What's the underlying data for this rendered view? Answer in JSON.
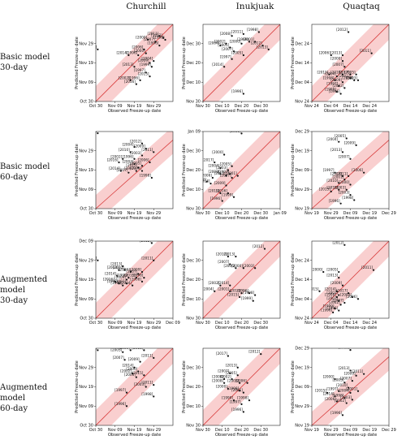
{
  "column_titles": [
    "Churchill",
    "Inukjuak",
    "Quaqtaq"
  ],
  "row_labels": [
    [
      "Basic model",
      "30-day"
    ],
    [
      "Basic model",
      "60-day"
    ],
    [
      "Augmented model",
      "30-day"
    ],
    [
      "Augmented model",
      "60-day"
    ]
  ],
  "axis_labels": {
    "x": "Observed Freeze-up date",
    "y": "Predicted Freeze-up date"
  },
  "colors": {
    "band": "#f9cfcf",
    "line": "#d94040",
    "point": "#111111",
    "frame": "#222222"
  },
  "chart_data": [
    {
      "type": "scatter",
      "panel": "Churchill Basic 30-day",
      "ticks": [
        "Oct 30",
        "Nov 09",
        "Nov 19",
        "Nov 29"
      ],
      "xlim": [
        0,
        40
      ],
      "ylim": [
        0,
        40
      ],
      "points": [
        [
          1,
          27,
          "[2017]"
        ],
        [
          17,
          24,
          "[2014]"
        ],
        [
          25,
          27,
          "[2006]"
        ],
        [
          26,
          25,
          "[2000]"
        ],
        [
          27,
          32,
          "[2000]"
        ],
        [
          31,
          31,
          "[2007]"
        ],
        [
          33,
          34,
          "[2011]"
        ],
        [
          35,
          33,
          "[2012]"
        ],
        [
          36,
          32,
          "[1998]"
        ],
        [
          22,
          24,
          "[1996]"
        ],
        [
          33,
          29,
          "[1996]"
        ],
        [
          20,
          18,
          "[2013]"
        ],
        [
          29,
          18,
          "[1999]"
        ],
        [
          30,
          21,
          "[2004]"
        ],
        [
          28,
          20,
          "[2009]"
        ],
        [
          26,
          15,
          "[1997]"
        ],
        [
          28,
          13,
          "[2015]"
        ],
        [
          23,
          11,
          "[1996]"
        ],
        [
          18,
          11,
          "[2002]"
        ],
        [
          21,
          9,
          "[2016]"
        ]
      ]
    },
    {
      "type": "scatter",
      "panel": "Inukjuak Basic 30-day",
      "ticks": [
        "Nov 30",
        "Dec 10",
        "Dec 20",
        "Dec 30"
      ],
      "xlim": [
        0,
        40
      ],
      "ylim": [
        0,
        40
      ],
      "points": [
        [
          9,
          29,
          "[2004]"
        ],
        [
          12,
          30,
          "[2002]"
        ],
        [
          15,
          34,
          "[2008]"
        ],
        [
          21,
          35,
          "[2011]"
        ],
        [
          29,
          36,
          "[1998]"
        ],
        [
          14,
          28,
          "[2001]"
        ],
        [
          16,
          26,
          "[2007]"
        ],
        [
          20,
          30,
          "[2000]"
        ],
        [
          24,
          31,
          "[1999]"
        ],
        [
          27,
          31,
          "[2001]"
        ],
        [
          31,
          29,
          "[2012]"
        ],
        [
          34,
          27,
          "[2013]"
        ],
        [
          21,
          24,
          "[2005]"
        ],
        [
          15,
          22,
          "[1997]"
        ],
        [
          11,
          18,
          "[2014]"
        ],
        [
          21,
          4,
          "[1996]"
        ]
      ]
    },
    {
      "type": "scatter",
      "panel": "Quaqtaq Basic 30-day",
      "ticks": [
        "Nov 24",
        "Dec 04",
        "Dec 14",
        "Dec 24"
      ],
      "xlim": [
        0,
        40
      ],
      "ylim": [
        0,
        40
      ],
      "points": [
        [
          19,
          36,
          "[2012]"
        ],
        [
          10,
          24,
          "[2006]"
        ],
        [
          16,
          24,
          "[2013]"
        ],
        [
          31,
          25,
          "[2011]"
        ],
        [
          16,
          21,
          "[2000]"
        ],
        [
          17,
          18,
          "[2007]"
        ],
        [
          9,
          14,
          "[2015]"
        ],
        [
          13,
          13,
          "[2004]"
        ],
        [
          16,
          14,
          "[2014]"
        ],
        [
          20,
          14,
          "[2017]"
        ],
        [
          23,
          14,
          "[2005]"
        ],
        [
          12,
          11,
          "[1998]"
        ],
        [
          20,
          12,
          "[2001]"
        ],
        [
          22,
          11,
          "[2008]"
        ],
        [
          24,
          11,
          "[2003]"
        ],
        [
          16,
          10,
          "[2009]"
        ],
        [
          14,
          8,
          "[1997]"
        ],
        [
          17,
          7,
          "[2002]"
        ],
        [
          13,
          5,
          "[1999]"
        ],
        [
          15,
          4,
          "[1996]"
        ]
      ]
    },
    {
      "type": "scatter",
      "panel": "Churchill Basic 60-day",
      "ticks": [
        "Oct 30",
        "Nov 09",
        "Nov 19",
        "Nov 29"
      ],
      "xlim": [
        0,
        40
      ],
      "ylim": [
        0,
        45
      ],
      "points": [
        [
          1,
          44,
          "[2017]"
        ],
        [
          24,
          38,
          "[2012]"
        ],
        [
          20,
          36,
          "[2004]"
        ],
        [
          26,
          35,
          "[2009]"
        ],
        [
          30,
          33,
          "[2011]"
        ],
        [
          18,
          33,
          "[2010]"
        ],
        [
          24,
          31,
          "[2003]"
        ],
        [
          14,
          29,
          "[2002]"
        ],
        [
          20,
          29,
          "[1996]"
        ],
        [
          12,
          27,
          "[2016]"
        ],
        [
          20,
          26,
          "[2003]"
        ],
        [
          24,
          25,
          "[2005]"
        ],
        [
          28,
          27,
          "[2006]"
        ],
        [
          13,
          22,
          "[2014]"
        ],
        [
          21,
          22,
          "[1997]"
        ],
        [
          17,
          21,
          "[2007]"
        ],
        [
          24,
          22,
          "[1999]"
        ],
        [
          29,
          18,
          "[1998]"
        ],
        [
          22,
          24,
          "[2015]"
        ]
      ]
    },
    {
      "type": "scatter",
      "panel": "Inukjuak Basic 60-day",
      "ticks": [
        "Nov 30",
        "Dec 10",
        "Dec 20",
        "Dec 30",
        "Jan 09"
      ],
      "xlim": [
        0,
        40
      ],
      "ylim": [
        0,
        40
      ],
      "points": [
        [
          20,
          39,
          "[2011]"
        ],
        [
          11,
          28,
          "[2000]"
        ],
        [
          6,
          24,
          "[2017]"
        ],
        [
          9,
          21,
          "[2004]"
        ],
        [
          15,
          22,
          "[2005]"
        ],
        [
          13,
          20,
          "[2003]"
        ],
        [
          9,
          18,
          "[2008]"
        ],
        [
          5,
          16,
          "[2006]"
        ],
        [
          2,
          14,
          "[2012]"
        ],
        [
          18,
          17,
          "[2001]"
        ],
        [
          12,
          17,
          "[2013]"
        ],
        [
          15,
          16,
          "[2007]"
        ],
        [
          4,
          13,
          "[2014]"
        ],
        [
          12,
          12,
          "[2009]"
        ],
        [
          9,
          8,
          "[2015]"
        ],
        [
          13,
          8,
          "[2016]"
        ],
        [
          16,
          6,
          "[1999]"
        ],
        [
          10,
          4,
          "[1996]"
        ],
        [
          14,
          18,
          "[2003]"
        ]
      ]
    },
    {
      "type": "scatter",
      "panel": "Quaqtaq Basic 60-day",
      "ticks": [
        "Nov 19",
        "Nov 29",
        "Dec 09",
        "Dec 19",
        "Dec 29"
      ],
      "xlim": [
        0,
        40
      ],
      "ylim": [
        0,
        45
      ],
      "points": [
        [
          18,
          41,
          "[2005]"
        ],
        [
          14,
          39,
          "[2004]"
        ],
        [
          23,
          37,
          "[2009]"
        ],
        [
          16,
          33,
          "[2013]"
        ],
        [
          20,
          29,
          "[2007]"
        ],
        [
          12,
          21,
          "[1997]"
        ],
        [
          16,
          19,
          "[2014]"
        ],
        [
          19,
          19,
          "[2011]"
        ],
        [
          27,
          21,
          "[2006]"
        ],
        [
          17,
          17,
          "[2001]"
        ],
        [
          14,
          15,
          "[2010]"
        ],
        [
          20,
          14,
          "[2000]"
        ],
        [
          14,
          11,
          "[2016]"
        ],
        [
          18,
          11,
          "[2003]"
        ],
        [
          10,
          10,
          "[2015]"
        ],
        [
          20,
          8,
          "[2003]"
        ],
        [
          22,
          5,
          "[1998]"
        ],
        [
          15,
          3,
          "[1996]"
        ]
      ]
    },
    {
      "type": "scatter",
      "panel": "Churchill Augmented 30-day",
      "ticks": [
        "Oct 30",
        "Nov 09",
        "Nov 19",
        "Nov 29",
        "Dec 09"
      ],
      "xlim": [
        0,
        40
      ],
      "ylim": [
        0,
        40
      ],
      "points": [
        [
          29,
          39,
          "[2012]"
        ],
        [
          1,
          30,
          "[2017]"
        ],
        [
          30,
          30,
          "[2011]"
        ],
        [
          14,
          27,
          "[2013]"
        ],
        [
          12,
          25,
          "[2003]"
        ],
        [
          15,
          25,
          "[2000]"
        ],
        [
          18,
          24,
          "[2006]"
        ],
        [
          24,
          24,
          "[2009]"
        ],
        [
          22,
          23,
          "[2007]"
        ],
        [
          11,
          22,
          "[2014]"
        ],
        [
          17,
          21,
          "[1996]"
        ],
        [
          21,
          21,
          "[2015]"
        ],
        [
          16,
          20,
          "[2009]"
        ],
        [
          12,
          18,
          "[1997]"
        ],
        [
          14,
          17,
          "[1999]"
        ],
        [
          19,
          17,
          "[2004]"
        ],
        [
          16,
          18,
          "[2002]"
        ],
        [
          25,
          21,
          "[1998]"
        ],
        [
          24,
          19,
          "[2008]"
        ],
        [
          10,
          19,
          "[2016]"
        ]
      ]
    },
    {
      "type": "scatter",
      "panel": "Inukjuak Augmented 30-day",
      "ticks": [
        "Nov 30",
        "Dec 10",
        "Dec 20",
        "Dec 30"
      ],
      "xlim": [
        0,
        40
      ],
      "ylim": [
        0,
        40
      ],
      "points": [
        [
          32,
          36,
          "[2012]"
        ],
        [
          13,
          32,
          "[2017]"
        ],
        [
          17,
          32,
          "[2013]"
        ],
        [
          14,
          28,
          "[2007]"
        ],
        [
          17,
          26,
          "[2006]"
        ],
        [
          21,
          26,
          "[2000]"
        ],
        [
          27,
          26,
          "[2003]"
        ],
        [
          9,
          17,
          "[2002]"
        ],
        [
          14,
          17,
          "[2014]"
        ],
        [
          6,
          14,
          "[2004]"
        ],
        [
          14,
          14,
          "[2001]"
        ],
        [
          20,
          13,
          "[2016]"
        ],
        [
          24,
          13,
          "[1996]"
        ],
        [
          27,
          12,
          "[1998]"
        ],
        [
          19,
          11,
          "[2015]"
        ],
        [
          26,
          9,
          "[1999]"
        ]
      ]
    },
    {
      "type": "scatter",
      "panel": "Quaqtaq Augmented 30-day",
      "ticks": [
        "Nov 24",
        "Dec 04",
        "Dec 14",
        "Dec 24"
      ],
      "xlim": [
        0,
        40
      ],
      "ylim": [
        0,
        40
      ],
      "points": [
        [
          17,
          38,
          "[2012]"
        ],
        [
          6,
          24,
          "[2000]"
        ],
        [
          14,
          24,
          "[2005]"
        ],
        [
          32,
          25,
          "[2011]"
        ],
        [
          14,
          21,
          "[2013]"
        ],
        [
          16,
          17,
          "[2009]"
        ],
        [
          4,
          14,
          "[2015]"
        ],
        [
          13,
          14,
          "[2014]"
        ],
        [
          19,
          13,
          "[2017]"
        ],
        [
          14,
          12,
          "[2001]"
        ],
        [
          13,
          11,
          "[1998]"
        ],
        [
          21,
          11,
          "[2003]"
        ],
        [
          24,
          10,
          "[2006]"
        ],
        [
          14,
          9,
          "[2007]"
        ],
        [
          17,
          8,
          "[2007]"
        ],
        [
          15,
          7,
          "[2002]"
        ],
        [
          12,
          5,
          "[1999]"
        ],
        [
          14,
          4,
          "[1996]"
        ],
        [
          11,
          3,
          "[1996]"
        ]
      ]
    },
    {
      "type": "scatter",
      "panel": "Churchill Augmented 60-day",
      "ticks": [
        "Oct 30",
        "Nov 09",
        "Nov 19",
        "Nov 29"
      ],
      "xlim": [
        0,
        40
      ],
      "ylim": [
        0,
        40
      ],
      "points": [
        [
          1,
          39,
          "[2017]"
        ],
        [
          18,
          39,
          "[2000]"
        ],
        [
          25,
          39,
          "[2013]"
        ],
        [
          14,
          38,
          "[2003]"
        ],
        [
          15,
          34,
          "[2007]"
        ],
        [
          23,
          33,
          "[2009]"
        ],
        [
          30,
          35,
          "[2011]"
        ],
        [
          20,
          30,
          "[2014]"
        ],
        [
          22,
          28,
          "[2000]"
        ],
        [
          19,
          27,
          "[2002]"
        ],
        [
          25,
          26,
          "[2015]"
        ],
        [
          21,
          25,
          "[2006]"
        ],
        [
          30,
          21,
          "[2011]"
        ],
        [
          26,
          20,
          "[2003]"
        ],
        [
          16,
          17,
          "[1997]"
        ],
        [
          30,
          15,
          "[1998]"
        ],
        [
          16,
          10,
          "[1996]"
        ]
      ]
    },
    {
      "type": "scatter",
      "panel": "Inukjuak Augmented 60-day",
      "ticks": [
        "Nov 30",
        "Dec 10",
        "Dec 20",
        "Dec 30"
      ],
      "xlim": [
        0,
        40
      ],
      "ylim": [
        0,
        40
      ],
      "points": [
        [
          30,
          37,
          "[2012]"
        ],
        [
          13,
          36,
          "[2017]"
        ],
        [
          18,
          30,
          "[2013]"
        ],
        [
          14,
          27,
          "[2007]"
        ],
        [
          18,
          26,
          "[2005]"
        ],
        [
          11,
          24,
          "[2004]"
        ],
        [
          15,
          24,
          "[2002]"
        ],
        [
          11,
          22,
          "[2008]"
        ],
        [
          19,
          22,
          "[2003]"
        ],
        [
          23,
          22,
          "[2006]"
        ],
        [
          13,
          19,
          "[2000]"
        ],
        [
          19,
          18,
          "[1998]"
        ],
        [
          21,
          17,
          "[2001]"
        ],
        [
          16,
          13,
          "[1999]"
        ],
        [
          24,
          13,
          "[1998]"
        ],
        [
          20,
          11,
          "[1997]"
        ],
        [
          21,
          7,
          "[1996]"
        ]
      ]
    },
    {
      "type": "scatter",
      "panel": "Quaqtaq Augmented 60-day",
      "ticks": [
        "Nov 19",
        "Nov 29",
        "Dec 09",
        "Dec 19",
        "Dec 29"
      ],
      "xlim": [
        0,
        40
      ],
      "ylim": [
        0,
        45
      ],
      "points": [
        [
          20,
          44,
          "[2012]"
        ],
        [
          20,
          32,
          "[2013]"
        ],
        [
          12,
          27,
          "[2000]"
        ],
        [
          23,
          29,
          "[2009]"
        ],
        [
          27,
          30,
          "[2011]"
        ],
        [
          21,
          26,
          "[2007]"
        ],
        [
          17,
          25,
          "[2005]"
        ],
        [
          19,
          22,
          "[2010]"
        ],
        [
          14,
          20,
          "[1997]"
        ],
        [
          20,
          19,
          "[2004]"
        ],
        [
          8,
          19,
          "[2015]"
        ],
        [
          24,
          20,
          "[2001]"
        ],
        [
          12,
          17,
          "[2014]"
        ],
        [
          17,
          16,
          "[1998]"
        ],
        [
          21,
          15,
          "[2003]"
        ],
        [
          13,
          14,
          "[2006]"
        ],
        [
          18,
          13,
          "[2002]"
        ],
        [
          16,
          6,
          "[1996]"
        ]
      ]
    }
  ]
}
